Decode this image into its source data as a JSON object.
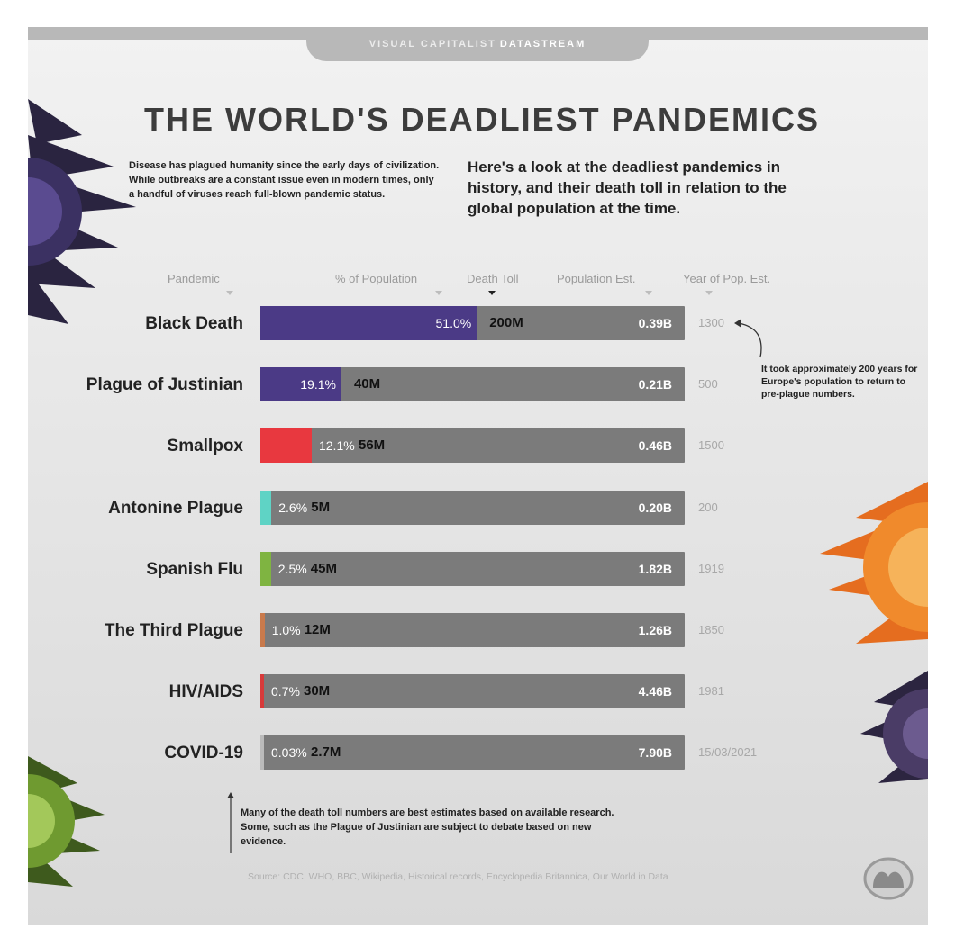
{
  "header": {
    "brand_prefix": "VISUAL CAPITALIST",
    "brand_suffix": "DATASTREAM"
  },
  "title": "THE WORLD'S DEADLIEST PANDEMICS",
  "intro_left": "Disease has plagued humanity since the early days of civilization. While outbreaks are a constant issue even in modern times, only a handful of viruses reach full-blown pandemic status.",
  "intro_right": "Here's a look at the deadliest pandemics in history, and their death toll in relation to the global population at the time.",
  "columns": {
    "pandemic": "Pandemic",
    "pct": "% of Population",
    "toll": "Death Toll",
    "pop": "Population Est.",
    "year": "Year of Pop. Est."
  },
  "colors": {
    "bar_background": "#7b7b7b",
    "black_death": "#4b3a86",
    "plague_of_justinian": "#4b3a86",
    "smallpox": "#e8383f",
    "antonine_plague": "#5fd3c5",
    "spanish_flu": "#7fb441",
    "third_plague": "#c97a4c",
    "hiv_aids": "#d83a3a",
    "covid_19": "#bbbbbb"
  },
  "chart_data": {
    "type": "bar",
    "orientation": "horizontal",
    "categories": [
      "Black Death",
      "Plague of Justinian",
      "Smallpox",
      "Antonine Plague",
      "Spanish Flu",
      "The Third Plague",
      "HIV/AIDS",
      "COVID-19"
    ],
    "values": [
      51.0,
      19.1,
      12.1,
      2.6,
      2.5,
      1.0,
      0.7,
      0.03
    ],
    "pct_labels": [
      "51.0%",
      "19.1%",
      "12.1%",
      "2.6%",
      "2.5%",
      "1.0%",
      "0.7%",
      "0.03%"
    ],
    "death_toll": [
      "200M",
      "40M",
      "56M",
      "5M",
      "45M",
      "12M",
      "30M",
      "2.7M"
    ],
    "population_est": [
      "0.39B",
      "0.21B",
      "0.46B",
      "0.20B",
      "1.82B",
      "1.26B",
      "4.46B",
      "7.90B"
    ],
    "year_of_pop_est": [
      "1300",
      "500",
      "1500",
      "200",
      "1919",
      "1850",
      "1981",
      "15/03/2021"
    ],
    "xlim": [
      0,
      100
    ],
    "grid": false
  },
  "note_right": "It took approximately 200 years for Europe's population to return to pre-plague numbers.",
  "note_bottom": "Many of the death toll numbers are best estimates based on available research. Some, such as the Plague of Justinian are subject to debate based on new evidence.",
  "source": "Source: CDC, WHO, BBC, Wikipedia, Historical records, Encyclopedia Britannica, Our World in Data",
  "icons": {
    "logo": "visual-capitalist-logo-icon",
    "virus": "virus-icon"
  }
}
